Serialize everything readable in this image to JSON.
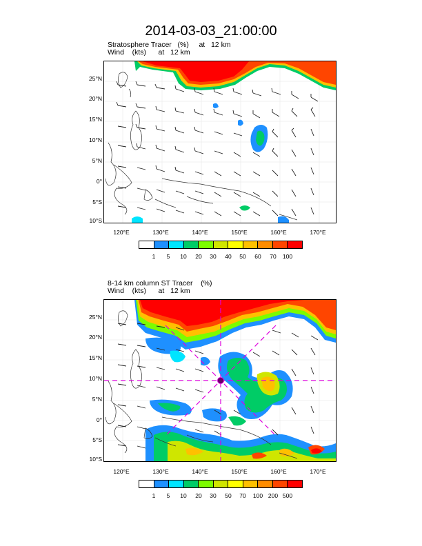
{
  "title": "2014-03-03_21:00:00",
  "panel1": {
    "field_line": "Stratosphere Tracer   (%)     at   12 km",
    "wind_line": "Wind    (kts)      at   12 km",
    "colorbar_colors": [
      "#ffffff",
      "#1e90ff",
      "#00e5ff",
      "#00cc66",
      "#7cfc00",
      "#cfe600",
      "#ffff00",
      "#ffc000",
      "#ff8c00",
      "#ff4500",
      "#ff0000"
    ],
    "colorbar_labels": [
      "1",
      "5",
      "10",
      "20",
      "30",
      "40",
      "50",
      "60",
      "70",
      "100"
    ]
  },
  "panel2": {
    "field_line": "8-14 km column ST Tracer    (%)",
    "wind_line": "Wind    (kts)      at   12 km",
    "colorbar_colors": [
      "#ffffff",
      "#1e90ff",
      "#00e5ff",
      "#00cc66",
      "#7cfc00",
      "#cfe600",
      "#ffff00",
      "#ffc000",
      "#ff8c00",
      "#ff4500",
      "#ff0000"
    ],
    "colorbar_labels": [
      "1",
      "5",
      "10",
      "20",
      "30",
      "50",
      "70",
      "100",
      "200",
      "500"
    ]
  },
  "axes": {
    "lat_labels": [
      "25°N",
      "20°N",
      "15°N",
      "10°N",
      "5°N",
      "0°",
      "5°S",
      "10°S"
    ],
    "lon_labels": [
      "120°E",
      "130°E",
      "140°E",
      "150°E",
      "160°E",
      "170°E"
    ]
  },
  "crosshair": {
    "lat": 10,
    "lon": 145,
    "color": "#dd00dd"
  }
}
